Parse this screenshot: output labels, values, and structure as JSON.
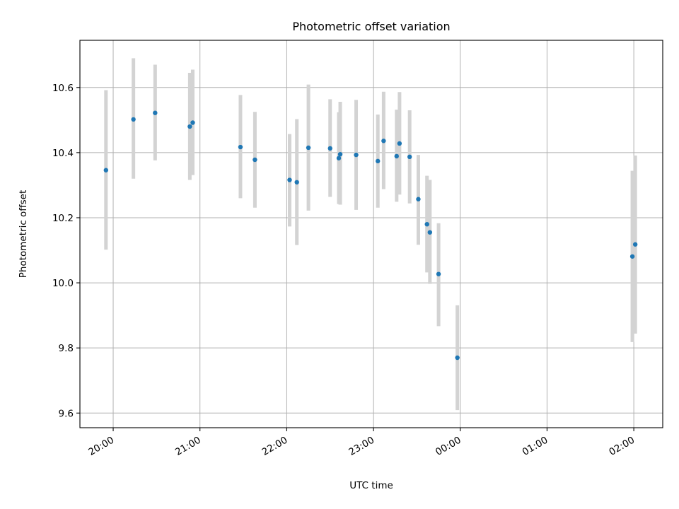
{
  "chart_data": {
    "type": "scatter",
    "title": "Photometric offset variation",
    "xlabel": "UTC time",
    "ylabel": "Photometric offset",
    "xlim": [
      "19:37",
      "02:20"
    ],
    "ylim": [
      9.555,
      10.745
    ],
    "x_ticks": [
      "20:00",
      "21:00",
      "22:00",
      "23:00",
      "00:00",
      "01:00",
      "02:00"
    ],
    "y_ticks": [
      "9.6",
      "9.8",
      "10.0",
      "10.2",
      "10.4",
      "10.6"
    ],
    "grid": true,
    "colors": {
      "points": "#1f77b4",
      "error_bars": "#d3d3d3"
    },
    "points": [
      {
        "x": "19:55",
        "y": 10.346,
        "ylow": 10.102,
        "yhigh": 10.592
      },
      {
        "x": "20:14",
        "y": 10.502,
        "ylow": 10.32,
        "yhigh": 10.69
      },
      {
        "x": "20:29",
        "y": 10.522,
        "ylow": 10.376,
        "yhigh": 10.67
      },
      {
        "x": "20:53",
        "y": 10.48,
        "ylow": 10.316,
        "yhigh": 10.645
      },
      {
        "x": "20:55",
        "y": 10.492,
        "ylow": 10.331,
        "yhigh": 10.655
      },
      {
        "x": "21:28",
        "y": 10.417,
        "ylow": 10.26,
        "yhigh": 10.577
      },
      {
        "x": "21:38",
        "y": 10.378,
        "ylow": 10.231,
        "yhigh": 10.525
      },
      {
        "x": "22:02",
        "y": 10.316,
        "ylow": 10.173,
        "yhigh": 10.457
      },
      {
        "x": "22:07",
        "y": 10.309,
        "ylow": 10.116,
        "yhigh": 10.503
      },
      {
        "x": "22:15",
        "y": 10.415,
        "ylow": 10.222,
        "yhigh": 10.609
      },
      {
        "x": "22:30",
        "y": 10.413,
        "ylow": 10.264,
        "yhigh": 10.564
      },
      {
        "x": "22:36",
        "y": 10.383,
        "ylow": 10.242,
        "yhigh": 10.524
      },
      {
        "x": "22:37",
        "y": 10.395,
        "ylow": 10.24,
        "yhigh": 10.556
      },
      {
        "x": "22:48",
        "y": 10.393,
        "ylow": 10.224,
        "yhigh": 10.562
      },
      {
        "x": "23:03",
        "y": 10.374,
        "ylow": 10.231,
        "yhigh": 10.517
      },
      {
        "x": "23:07",
        "y": 10.436,
        "ylow": 10.288,
        "yhigh": 10.587
      },
      {
        "x": "23:16",
        "y": 10.389,
        "ylow": 10.249,
        "yhigh": 10.532
      },
      {
        "x": "23:18",
        "y": 10.428,
        "ylow": 10.271,
        "yhigh": 10.586
      },
      {
        "x": "23:25",
        "y": 10.387,
        "ylow": 10.244,
        "yhigh": 10.53
      },
      {
        "x": "23:31",
        "y": 10.257,
        "ylow": 10.117,
        "yhigh": 10.393
      },
      {
        "x": "23:37",
        "y": 10.18,
        "ylow": 10.032,
        "yhigh": 10.329
      },
      {
        "x": "23:39",
        "y": 10.155,
        "ylow": 9.997,
        "yhigh": 10.316
      },
      {
        "x": "23:45",
        "y": 10.027,
        "ylow": 9.867,
        "yhigh": 10.183
      },
      {
        "x": "23:58",
        "y": 9.77,
        "ylow": 9.609,
        "yhigh": 9.931
      },
      {
        "x": "01:59",
        "y": 10.081,
        "ylow": 9.818,
        "yhigh": 10.344
      },
      {
        "x": "02:01",
        "y": 10.118,
        "ylow": 9.844,
        "yhigh": 10.391
      }
    ]
  }
}
